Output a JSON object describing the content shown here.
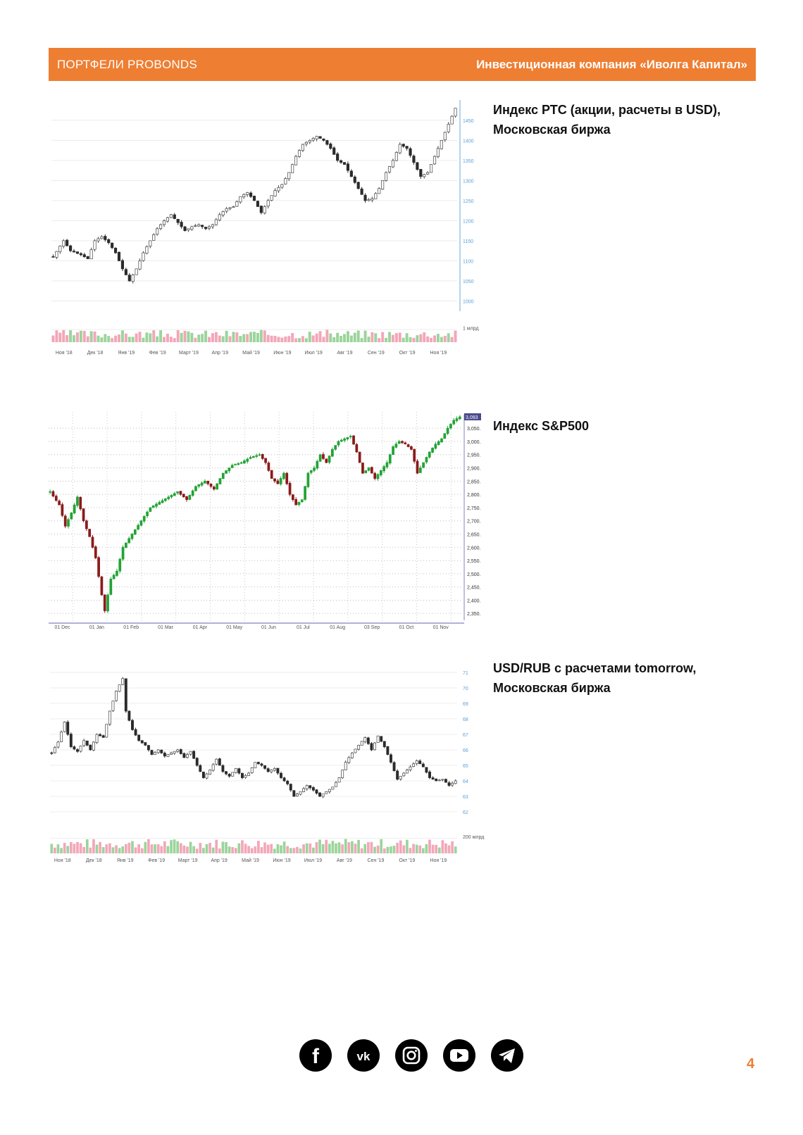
{
  "header": {
    "left": "ПОРТФЕЛИ PROBONDS",
    "right": "Инвестиционная компания «Иволга Капитал»"
  },
  "page_number": "4",
  "social": [
    "facebook-icon",
    "vk-icon",
    "instagram-icon",
    "youtube-icon",
    "telegram-icon"
  ],
  "colors": {
    "accent": "#ee7e32",
    "up": "#22a335",
    "down": "#8b1a1a",
    "candle": "#2b2b2b",
    "axis_blue": "#5aa0d8"
  },
  "chart_data": [
    {
      "type": "candlestick",
      "caption_lines": [
        "Индекс РТС (акции, расчеты в USD),",
        "Московская биржа"
      ],
      "y_ticks": [
        1000,
        1050,
        1100,
        1150,
        1200,
        1250,
        1300,
        1350,
        1400,
        1450
      ],
      "ylim": [
        985,
        1490
      ],
      "x_ticks": [
        "Ноя '18",
        "Дек '18",
        "Янв '19",
        "Фев '19",
        "Март '19",
        "Апр '19",
        "Май '19",
        "Июн '19",
        "Июл '19",
        "Авг '19",
        "Сен '19",
        "Окт '19",
        "Ноя '19"
      ],
      "volume_label": "1 млрд",
      "anchors": [
        [
          0,
          1110
        ],
        [
          3,
          1150
        ],
        [
          5,
          1125
        ],
        [
          8,
          1115
        ],
        [
          10,
          1105
        ],
        [
          12,
          1150
        ],
        [
          14,
          1160
        ],
        [
          16,
          1145
        ],
        [
          18,
          1120
        ],
        [
          20,
          1080
        ],
        [
          22,
          1050
        ],
        [
          24,
          1080
        ],
        [
          26,
          1120
        ],
        [
          28,
          1150
        ],
        [
          30,
          1180
        ],
        [
          32,
          1200
        ],
        [
          34,
          1215
        ],
        [
          36,
          1195
        ],
        [
          38,
          1175
        ],
        [
          40,
          1185
        ],
        [
          42,
          1190
        ],
        [
          44,
          1180
        ],
        [
          46,
          1190
        ],
        [
          48,
          1215
        ],
        [
          50,
          1230
        ],
        [
          52,
          1235
        ],
        [
          54,
          1260
        ],
        [
          56,
          1270
        ],
        [
          58,
          1250
        ],
        [
          60,
          1220
        ],
        [
          62,
          1250
        ],
        [
          64,
          1275
        ],
        [
          66,
          1290
        ],
        [
          68,
          1320
        ],
        [
          70,
          1360
        ],
        [
          72,
          1390
        ],
        [
          74,
          1400
        ],
        [
          76,
          1410
        ],
        [
          78,
          1400
        ],
        [
          80,
          1380
        ],
        [
          82,
          1350
        ],
        [
          84,
          1340
        ],
        [
          86,
          1310
        ],
        [
          88,
          1280
        ],
        [
          90,
          1250
        ],
        [
          92,
          1255
        ],
        [
          94,
          1280
        ],
        [
          96,
          1320
        ],
        [
          98,
          1350
        ],
        [
          100,
          1390
        ],
        [
          102,
          1380
        ],
        [
          104,
          1345
        ],
        [
          106,
          1310
        ],
        [
          108,
          1320
        ],
        [
          110,
          1360
        ],
        [
          112,
          1400
        ],
        [
          114,
          1440
        ],
        [
          116,
          1480
        ]
      ],
      "volume_seed": 3
    },
    {
      "type": "candlestick",
      "caption_lines": [
        "Индекс S&P500"
      ],
      "y_ticks": [
        2350,
        2400,
        2450,
        2500,
        2550,
        2600,
        2650,
        2700,
        2750,
        2800,
        2850,
        2900,
        2950,
        3000,
        3050
      ],
      "ylim": [
        2340,
        3085
      ],
      "last_value_label": "3,093",
      "x_ticks": [
        "01 Dec",
        "01 Jan",
        "01 Feb",
        "01 Mar",
        "01 Apr",
        "01 May",
        "01 Jun",
        "01 Jul",
        "01 Aug",
        "03 Sep",
        "01 Oct",
        "01 Nov"
      ],
      "anchors": [
        [
          0,
          2810
        ],
        [
          3,
          2760
        ],
        [
          5,
          2680
        ],
        [
          7,
          2730
        ],
        [
          9,
          2790
        ],
        [
          11,
          2700
        ],
        [
          13,
          2640
        ],
        [
          15,
          2560
        ],
        [
          17,
          2420
        ],
        [
          18,
          2360
        ],
        [
          20,
          2480
        ],
        [
          22,
          2510
        ],
        [
          24,
          2600
        ],
        [
          27,
          2650
        ],
        [
          30,
          2700
        ],
        [
          33,
          2750
        ],
        [
          36,
          2770
        ],
        [
          39,
          2790
        ],
        [
          42,
          2810
        ],
        [
          45,
          2780
        ],
        [
          48,
          2830
        ],
        [
          51,
          2850
        ],
        [
          54,
          2820
        ],
        [
          57,
          2880
        ],
        [
          60,
          2910
        ],
        [
          63,
          2920
        ],
        [
          66,
          2940
        ],
        [
          69,
          2950
        ],
        [
          71,
          2920
        ],
        [
          73,
          2860
        ],
        [
          75,
          2840
        ],
        [
          77,
          2880
        ],
        [
          79,
          2800
        ],
        [
          81,
          2760
        ],
        [
          83,
          2780
        ],
        [
          85,
          2880
        ],
        [
          87,
          2900
        ],
        [
          89,
          2950
        ],
        [
          91,
          2920
        ],
        [
          93,
          2970
        ],
        [
          95,
          3000
        ],
        [
          97,
          3010
        ],
        [
          99,
          3020
        ],
        [
          101,
          2960
        ],
        [
          103,
          2880
        ],
        [
          105,
          2900
        ],
        [
          107,
          2860
        ],
        [
          109,
          2890
        ],
        [
          111,
          2920
        ],
        [
          113,
          2980
        ],
        [
          115,
          3000
        ],
        [
          117,
          2990
        ],
        [
          119,
          2970
        ],
        [
          121,
          2880
        ],
        [
          123,
          2920
        ],
        [
          125,
          2960
        ],
        [
          127,
          2990
        ],
        [
          129,
          3010
        ],
        [
          131,
          3050
        ],
        [
          133,
          3080
        ],
        [
          135,
          3093
        ]
      ]
    },
    {
      "type": "candlestick",
      "caption_lines": [
        "USD/RUB с расчетами tomorrow,",
        "Московская биржа"
      ],
      "y_ticks": [
        62,
        63,
        64,
        65,
        66,
        67,
        68,
        69,
        70,
        71
      ],
      "ylim": [
        61.5,
        71.5
      ],
      "x_ticks": [
        "Ноя '18",
        "Дек '18",
        "Янв '19",
        "Фев '19",
        "Март '19",
        "Апр '19",
        "Май '19",
        "Июн '19",
        "Июл '19",
        "Авг '19",
        "Сен '19",
        "Окт '19",
        "Ноя '19"
      ],
      "volume_label": "200 млрд",
      "anchors": [
        [
          0,
          65.8
        ],
        [
          2,
          66.5
        ],
        [
          4,
          67.8
        ],
        [
          6,
          66.2
        ],
        [
          8,
          65.9
        ],
        [
          10,
          66.6
        ],
        [
          12,
          66.0
        ],
        [
          14,
          67.0
        ],
        [
          16,
          66.8
        ],
        [
          18,
          68.5
        ],
        [
          20,
          69.8
        ],
        [
          22,
          70.6
        ],
        [
          23,
          68.5
        ],
        [
          25,
          67.3
        ],
        [
          27,
          66.6
        ],
        [
          29,
          66.3
        ],
        [
          31,
          65.7
        ],
        [
          33,
          66.0
        ],
        [
          35,
          65.6
        ],
        [
          37,
          65.8
        ],
        [
          39,
          66.0
        ],
        [
          41,
          65.5
        ],
        [
          43,
          65.9
        ],
        [
          45,
          65.0
        ],
        [
          47,
          64.2
        ],
        [
          49,
          64.7
        ],
        [
          51,
          65.4
        ],
        [
          53,
          64.6
        ],
        [
          55,
          64.3
        ],
        [
          57,
          64.8
        ],
        [
          59,
          64.2
        ],
        [
          61,
          64.5
        ],
        [
          63,
          65.2
        ],
        [
          65,
          65.0
        ],
        [
          67,
          64.6
        ],
        [
          69,
          64.8
        ],
        [
          71,
          64.2
        ],
        [
          73,
          63.8
        ],
        [
          75,
          63.0
        ],
        [
          77,
          63.3
        ],
        [
          79,
          63.7
        ],
        [
          81,
          63.4
        ],
        [
          83,
          63.0
        ],
        [
          85,
          63.3
        ],
        [
          87,
          63.6
        ],
        [
          89,
          64.2
        ],
        [
          91,
          65.2
        ],
        [
          93,
          65.8
        ],
        [
          95,
          66.3
        ],
        [
          97,
          66.8
        ],
        [
          99,
          66.0
        ],
        [
          101,
          66.9
        ],
        [
          103,
          66.2
        ],
        [
          105,
          65.2
        ],
        [
          107,
          64.1
        ],
        [
          109,
          64.5
        ],
        [
          111,
          64.9
        ],
        [
          113,
          65.3
        ],
        [
          115,
          64.9
        ],
        [
          117,
          64.2
        ],
        [
          119,
          64.0
        ],
        [
          121,
          64.1
        ],
        [
          123,
          63.7
        ],
        [
          125,
          64.0
        ]
      ],
      "volume_seed": 7
    }
  ]
}
